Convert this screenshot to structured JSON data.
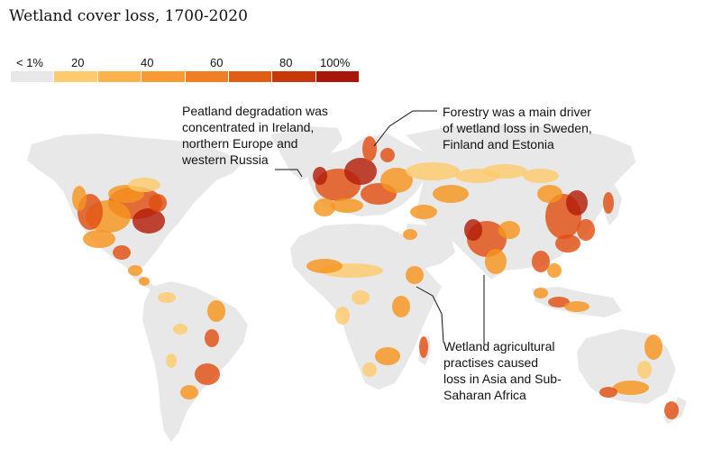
{
  "title": "Wetland cover loss, 1700-2020",
  "legend": {
    "labels": [
      "< 1%",
      "20",
      "40",
      "60",
      "80",
      "100%"
    ],
    "colors": [
      "#e8e8e8",
      "#fdcb6e",
      "#fcb24a",
      "#f99a35",
      "#f07e22",
      "#e15f14",
      "#c7380a",
      "#a8170a"
    ]
  },
  "annotations": [
    {
      "lines": [
        "Peatland degradation was",
        "concentrated in Ireland,",
        "northern Europe and",
        "western Russia"
      ]
    },
    {
      "lines": [
        "Forestry was a main driver",
        "of wetland loss in Sweden,",
        "Finland and Estonia"
      ]
    },
    {
      "lines": [
        "Wetland agricultural",
        "practises caused",
        "loss in Asia and Sub-",
        "Saharan Africa"
      ]
    }
  ],
  "colors": {
    "land": "#e8e8e8",
    "low": "#fdcb6e",
    "mid": "#f7951f",
    "high": "#e04f12",
    "max": "#b51d0a"
  }
}
